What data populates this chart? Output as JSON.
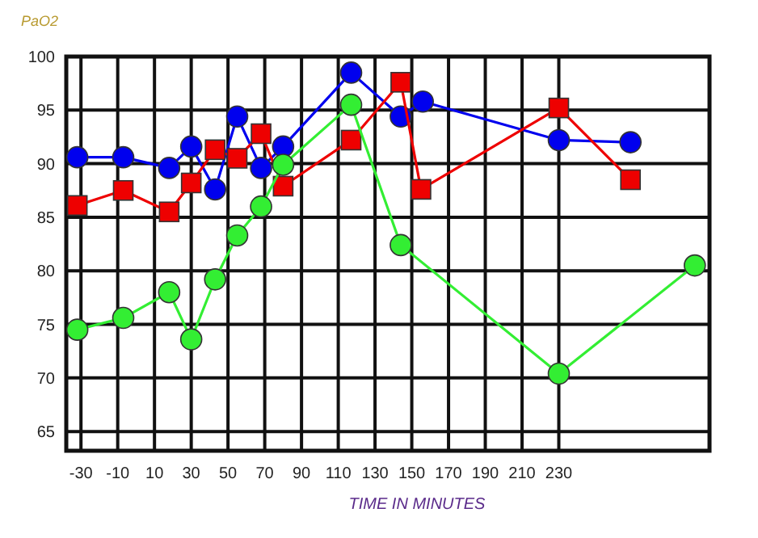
{
  "chart_data": {
    "type": "line",
    "ylabel": "PaO2",
    "xlabel": "TIME IN MINUTES",
    "xlim": [
      -38,
      312
    ],
    "xticks": [
      -30,
      -10,
      10,
      30,
      50,
      70,
      90,
      110,
      130,
      150,
      170,
      190,
      210,
      230
    ],
    "ylim": [
      63.2,
      100
    ],
    "yticks": [
      65,
      70,
      75,
      80,
      85,
      90,
      95,
      100
    ],
    "grid": true,
    "series": [
      {
        "color": "#0000ee",
        "marker": "circle",
        "x": [
          -32,
          -7,
          18,
          30,
          43,
          55,
          68,
          80,
          117,
          144,
          156,
          230,
          269
        ],
        "values": [
          90.6,
          90.6,
          89.6,
          91.6,
          87.6,
          94.4,
          89.6,
          91.6,
          98.5,
          94.4,
          95.8,
          92.2,
          92.0
        ]
      },
      {
        "color": "#ee0000",
        "marker": "square",
        "x": [
          -32,
          -7,
          18,
          30,
          43,
          55,
          68,
          80,
          117,
          144,
          155,
          230,
          269
        ],
        "values": [
          86.1,
          87.5,
          85.5,
          88.2,
          91.3,
          90.5,
          92.8,
          87.9,
          92.2,
          97.6,
          87.6,
          95.2,
          88.5
        ]
      },
      {
        "color": "#33ee33",
        "marker": "circle",
        "x": [
          -32,
          -7,
          18,
          30,
          43,
          55,
          68,
          80,
          117,
          144,
          230,
          304
        ],
        "values": [
          74.5,
          75.6,
          78.0,
          73.6,
          79.2,
          83.3,
          86.0,
          89.9,
          95.5,
          82.4,
          70.4,
          80.5
        ]
      }
    ]
  }
}
